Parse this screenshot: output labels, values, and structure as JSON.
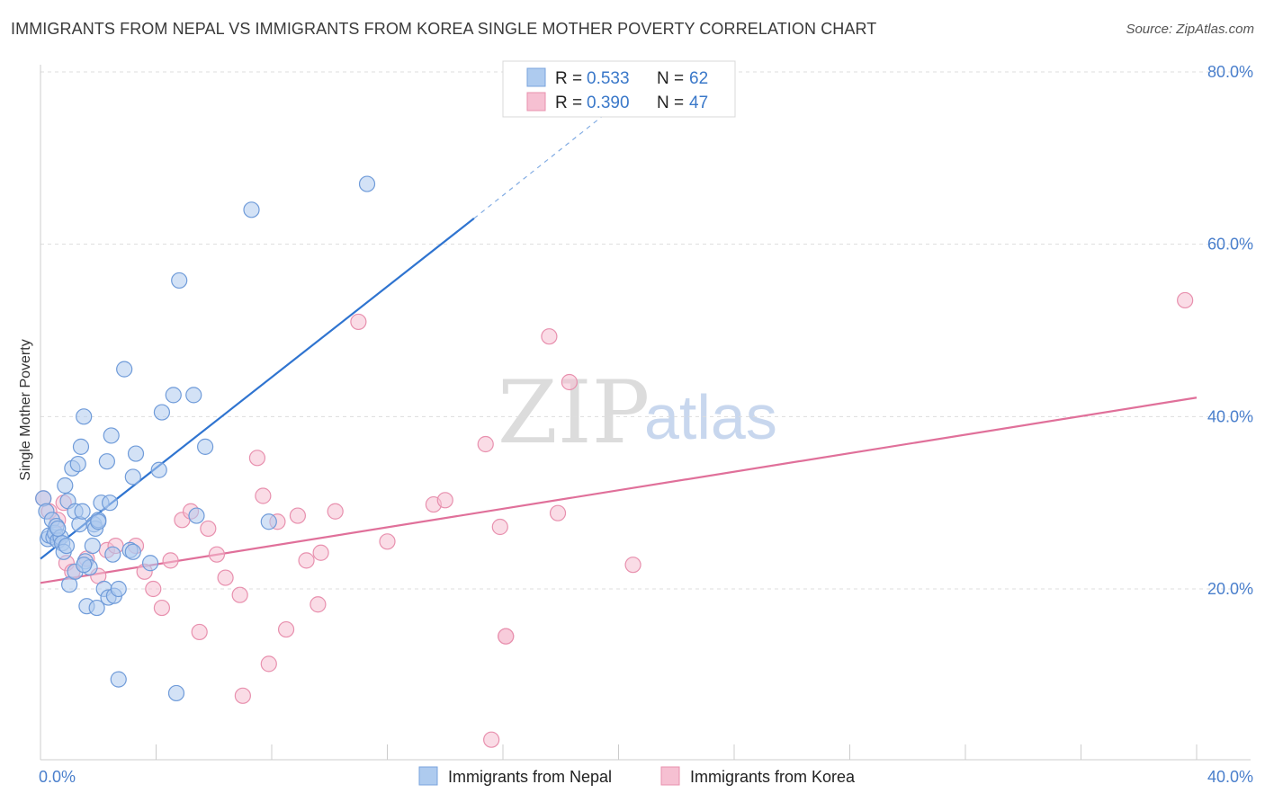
{
  "header": {
    "title": "IMMIGRANTS FROM NEPAL VS IMMIGRANTS FROM KOREA SINGLE MOTHER POVERTY CORRELATION CHART",
    "source": "Source: ZipAtlas.com"
  },
  "watermark": {
    "zip": "ZIP",
    "atlas": "atlas"
  },
  "legend": {
    "entries": [
      {
        "r_label": "R =",
        "r_value": "0.533",
        "n_label": "N =",
        "n_value": "62",
        "color": "#aecbef",
        "stroke": "#7aa3dd"
      },
      {
        "r_label": "R =",
        "r_value": "0.390",
        "n_label": "N =",
        "n_value": "47",
        "color": "#f6c0d2",
        "stroke": "#e890ae"
      }
    ]
  },
  "colors": {
    "nepal_fill": "#aecbef",
    "nepal_stroke": "#6f9bd9",
    "nepal_line": "#2f74d0",
    "korea_fill": "#f6c0d2",
    "korea_stroke": "#e890ae",
    "korea_line": "#e0709a",
    "grid": "#dddddd",
    "tick_text": "#4a7fcc"
  },
  "chart_data": {
    "type": "scatter",
    "title": "IMMIGRANTS FROM NEPAL VS IMMIGRANTS FROM KOREA SINGLE MOTHER POVERTY CORRELATION CHART",
    "xlabel": "",
    "ylabel": "Single Mother Poverty",
    "xlim": [
      0,
      40
    ],
    "ylim": [
      0,
      82
    ],
    "x_tick_labels": [
      "0.0%",
      "40.0%"
    ],
    "y_tick_labels": [
      "20.0%",
      "40.0%",
      "60.0%",
      "80.0%"
    ],
    "y_ticks": [
      20,
      40,
      60,
      80
    ],
    "grid": true,
    "legend_placement": "top-center",
    "series": [
      {
        "name": "Immigrants from Nepal",
        "points": [
          [
            0.1,
            30.5
          ],
          [
            0.2,
            29.0
          ],
          [
            0.25,
            25.8
          ],
          [
            0.3,
            26.2
          ],
          [
            0.4,
            28.0
          ],
          [
            0.45,
            26.0
          ],
          [
            0.5,
            26.5
          ],
          [
            0.55,
            27.3
          ],
          [
            0.6,
            25.6
          ],
          [
            0.7,
            26.0
          ],
          [
            0.75,
            25.3
          ],
          [
            0.8,
            24.3
          ],
          [
            0.85,
            32.0
          ],
          [
            0.9,
            25.0
          ],
          [
            0.95,
            30.2
          ],
          [
            1.0,
            20.5
          ],
          [
            1.1,
            34.0
          ],
          [
            1.2,
            29.0
          ],
          [
            1.3,
            34.5
          ],
          [
            1.35,
            27.5
          ],
          [
            1.4,
            36.5
          ],
          [
            1.45,
            29.0
          ],
          [
            1.5,
            40.0
          ],
          [
            1.55,
            23.2
          ],
          [
            1.6,
            18.0
          ],
          [
            1.7,
            22.5
          ],
          [
            1.8,
            25.0
          ],
          [
            1.85,
            27.5
          ],
          [
            1.9,
            27.0
          ],
          [
            1.95,
            17.8
          ],
          [
            2.0,
            28.0
          ],
          [
            2.1,
            30.0
          ],
          [
            2.2,
            20.0
          ],
          [
            2.3,
            34.8
          ],
          [
            2.35,
            19.0
          ],
          [
            2.4,
            30.0
          ],
          [
            2.45,
            37.8
          ],
          [
            2.5,
            24.0
          ],
          [
            2.55,
            19.2
          ],
          [
            2.7,
            20.0
          ],
          [
            2.9,
            45.5
          ],
          [
            3.1,
            24.5
          ],
          [
            3.2,
            33.0
          ],
          [
            3.3,
            35.7
          ],
          [
            3.8,
            23.0
          ],
          [
            4.1,
            33.8
          ],
          [
            4.2,
            40.5
          ],
          [
            4.6,
            42.5
          ],
          [
            4.8,
            55.8
          ],
          [
            5.3,
            42.5
          ],
          [
            5.4,
            28.5
          ],
          [
            5.7,
            36.5
          ],
          [
            7.3,
            64.0
          ],
          [
            7.9,
            27.8
          ],
          [
            11.3,
            67.0
          ],
          [
            2.7,
            9.5
          ],
          [
            4.7,
            7.9
          ],
          [
            1.2,
            22.0
          ],
          [
            0.6,
            27.0
          ],
          [
            1.5,
            22.8
          ],
          [
            2.0,
            27.8
          ],
          [
            3.2,
            24.3
          ]
        ]
      },
      {
        "name": "Immigrants from Korea",
        "points": [
          [
            0.1,
            30.5
          ],
          [
            0.3,
            29.0
          ],
          [
            0.6,
            28.0
          ],
          [
            0.8,
            30.0
          ],
          [
            0.9,
            23.0
          ],
          [
            1.1,
            22.0
          ],
          [
            1.6,
            23.5
          ],
          [
            2.0,
            21.5
          ],
          [
            2.3,
            24.5
          ],
          [
            2.6,
            25.0
          ],
          [
            3.3,
            25.0
          ],
          [
            3.6,
            22.0
          ],
          [
            3.9,
            20.0
          ],
          [
            4.2,
            17.8
          ],
          [
            4.5,
            23.3
          ],
          [
            4.9,
            28.0
          ],
          [
            5.2,
            29.0
          ],
          [
            5.5,
            15.0
          ],
          [
            5.8,
            27.0
          ],
          [
            6.1,
            24.0
          ],
          [
            6.4,
            21.3
          ],
          [
            6.9,
            19.3
          ],
          [
            7.0,
            7.6
          ],
          [
            7.5,
            35.2
          ],
          [
            7.7,
            30.8
          ],
          [
            7.9,
            11.3
          ],
          [
            8.2,
            27.8
          ],
          [
            8.5,
            15.3
          ],
          [
            8.9,
            28.5
          ],
          [
            9.2,
            23.3
          ],
          [
            9.6,
            18.2
          ],
          [
            9.7,
            24.2
          ],
          [
            10.2,
            29.0
          ],
          [
            11.0,
            51.0
          ],
          [
            12.0,
            25.5
          ],
          [
            13.6,
            29.8
          ],
          [
            14.0,
            30.3
          ],
          [
            15.4,
            36.8
          ],
          [
            15.6,
            2.5
          ],
          [
            15.9,
            27.2
          ],
          [
            16.1,
            14.5
          ],
          [
            16.1,
            14.5
          ],
          [
            17.6,
            49.3
          ],
          [
            17.9,
            28.8
          ],
          [
            18.3,
            44.0
          ],
          [
            20.5,
            22.8
          ],
          [
            39.6,
            53.5
          ]
        ]
      }
    ],
    "trend_lines": [
      {
        "series": "Immigrants from Nepal",
        "x_start": 0,
        "y_start": 23.5,
        "x_solid_end": 15.0,
        "y_solid_end": 63.0,
        "x_dash_end": 20.8,
        "y_dash_end": 78.5
      },
      {
        "series": "Immigrants from Korea",
        "x_start": 0,
        "y_start": 20.7,
        "x_end": 40,
        "y_end": 42.2
      }
    ]
  }
}
